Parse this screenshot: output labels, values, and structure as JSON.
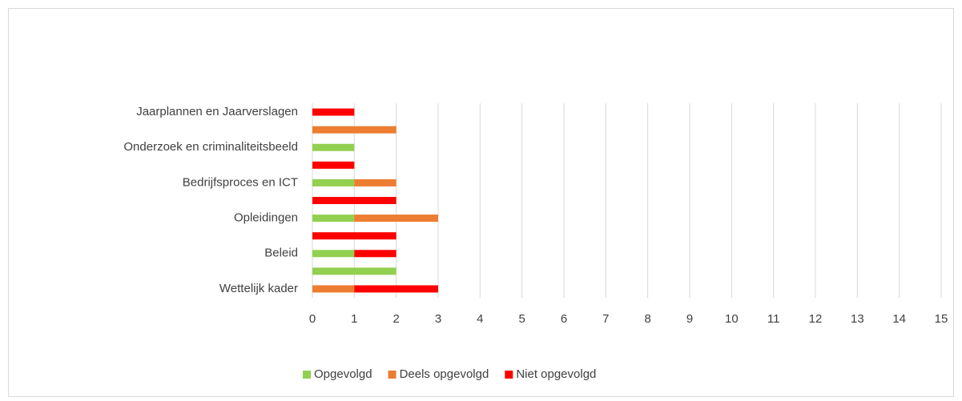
{
  "chart_data": {
    "type": "stacked-bar-horizontal",
    "categories": [
      "Jaarplannen en Jaarverslagen",
      null,
      "Onderzoek en criminaliteitsbeeld",
      null,
      "Bedrijfsproces en ICT",
      null,
      "Opleidingen",
      null,
      "Beleid",
      null,
      "Wettelijk kader"
    ],
    "series": [
      {
        "name": "Opgevolgd",
        "color": "#92d050",
        "values": [
          0,
          0,
          1,
          0,
          1,
          0,
          1,
          0,
          1,
          2,
          0
        ]
      },
      {
        "name": "Deels opgevolgd",
        "color": "#ed7d31",
        "values": [
          0,
          2,
          0,
          0,
          1,
          0,
          2,
          0,
          0,
          0,
          1
        ]
      },
      {
        "name": "Niet opgevolgd",
        "color": "#ff0000",
        "values": [
          1,
          0,
          0,
          1,
          0,
          2,
          0,
          2,
          1,
          0,
          2
        ]
      }
    ],
    "xlim": [
      0,
      15
    ],
    "xticks": [
      0,
      1,
      2,
      3,
      4,
      5,
      6,
      7,
      8,
      9,
      10,
      11,
      12,
      13,
      14,
      15
    ],
    "grid": true,
    "legend": "bottom"
  }
}
